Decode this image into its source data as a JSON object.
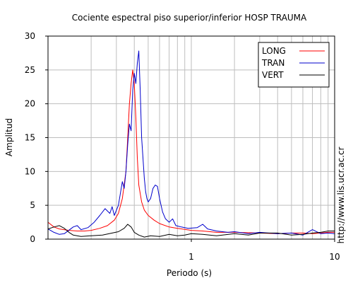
{
  "chart_data": {
    "type": "line",
    "title": "Cociente espectral piso superior/inferior  HOSP TRAUMA",
    "xlabel": "Periodo (s)",
    "ylabel": "Amplitud",
    "xscale": "log",
    "xlim": [
      0.1,
      10
    ],
    "ylim": [
      0,
      30
    ],
    "xticks": [
      {
        "value": 1,
        "label": "1"
      },
      {
        "value": 10,
        "label": "10"
      }
    ],
    "yticks": [
      0,
      5,
      10,
      15,
      20,
      25,
      30
    ],
    "grid": true,
    "legend_position": "top-right",
    "watermark": "http://www.lis.ucr.ac.cr",
    "series": [
      {
        "name": "LONG",
        "color": "#ff0000",
        "points": [
          [
            0.1,
            2.5
          ],
          [
            0.11,
            1.8
          ],
          [
            0.12,
            1.5
          ],
          [
            0.14,
            1.3
          ],
          [
            0.16,
            1.2
          ],
          [
            0.18,
            1.2
          ],
          [
            0.2,
            1.3
          ],
          [
            0.23,
            1.6
          ],
          [
            0.26,
            2.0
          ],
          [
            0.29,
            2.8
          ],
          [
            0.31,
            3.8
          ],
          [
            0.33,
            6.0
          ],
          [
            0.35,
            10.0
          ],
          [
            0.36,
            15.0
          ],
          [
            0.37,
            20.0
          ],
          [
            0.38,
            23.0
          ],
          [
            0.39,
            25.0
          ],
          [
            0.4,
            23.0
          ],
          [
            0.41,
            18.0
          ],
          [
            0.42,
            12.0
          ],
          [
            0.43,
            8.0
          ],
          [
            0.45,
            5.5
          ],
          [
            0.47,
            4.3
          ],
          [
            0.5,
            3.5
          ],
          [
            0.55,
            2.8
          ],
          [
            0.6,
            2.3
          ],
          [
            0.7,
            1.8
          ],
          [
            0.8,
            1.6
          ],
          [
            1.0,
            1.3
          ],
          [
            1.2,
            1.2
          ],
          [
            1.5,
            1.0
          ],
          [
            2.0,
            1.0
          ],
          [
            3.0,
            0.9
          ],
          [
            4.0,
            0.8
          ],
          [
            5.0,
            0.9
          ],
          [
            6.0,
            0.9
          ],
          [
            7.0,
            0.8
          ],
          [
            8.0,
            0.9
          ],
          [
            9.0,
            1.0
          ],
          [
            10.0,
            1.0
          ]
        ]
      },
      {
        "name": "TRAN",
        "color": "#0000cc",
        "points": [
          [
            0.1,
            1.5
          ],
          [
            0.11,
            1.0
          ],
          [
            0.12,
            0.7
          ],
          [
            0.13,
            0.8
          ],
          [
            0.15,
            1.8
          ],
          [
            0.16,
            2.0
          ],
          [
            0.17,
            1.4
          ],
          [
            0.19,
            1.7
          ],
          [
            0.21,
            2.5
          ],
          [
            0.23,
            3.5
          ],
          [
            0.25,
            4.5
          ],
          [
            0.27,
            3.8
          ],
          [
            0.28,
            4.8
          ],
          [
            0.29,
            3.5
          ],
          [
            0.31,
            5.0
          ],
          [
            0.33,
            8.5
          ],
          [
            0.34,
            7.5
          ],
          [
            0.35,
            10.0
          ],
          [
            0.36,
            14.0
          ],
          [
            0.37,
            17.0
          ],
          [
            0.38,
            16.0
          ],
          [
            0.39,
            22.0
          ],
          [
            0.4,
            24.5
          ],
          [
            0.41,
            23.0
          ],
          [
            0.42,
            26.0
          ],
          [
            0.43,
            27.8
          ],
          [
            0.44,
            22.0
          ],
          [
            0.45,
            15.0
          ],
          [
            0.46,
            12.0
          ],
          [
            0.47,
            9.0
          ],
          [
            0.48,
            7.0
          ],
          [
            0.49,
            6.0
          ],
          [
            0.5,
            5.5
          ],
          [
            0.52,
            6.0
          ],
          [
            0.54,
            7.5
          ],
          [
            0.56,
            8.0
          ],
          [
            0.58,
            7.8
          ],
          [
            0.6,
            6.0
          ],
          [
            0.63,
            4.0
          ],
          [
            0.66,
            3.0
          ],
          [
            0.7,
            2.5
          ],
          [
            0.74,
            3.0
          ],
          [
            0.78,
            2.0
          ],
          [
            0.85,
            1.8
          ],
          [
            0.95,
            1.6
          ],
          [
            1.1,
            1.7
          ],
          [
            1.2,
            2.2
          ],
          [
            1.3,
            1.5
          ],
          [
            1.5,
            1.2
          ],
          [
            1.8,
            1.0
          ],
          [
            2.0,
            1.1
          ],
          [
            2.5,
            0.8
          ],
          [
            3.0,
            1.0
          ],
          [
            4.0,
            0.8
          ],
          [
            5.0,
            0.9
          ],
          [
            6.0,
            0.6
          ],
          [
            7.0,
            1.4
          ],
          [
            8.0,
            0.8
          ],
          [
            9.0,
            0.9
          ],
          [
            10.0,
            0.8
          ]
        ]
      },
      {
        "name": "VERT",
        "color": "#000000",
        "points": [
          [
            0.1,
            1.5
          ],
          [
            0.11,
            1.8
          ],
          [
            0.12,
            2.0
          ],
          [
            0.13,
            1.6
          ],
          [
            0.14,
            1.0
          ],
          [
            0.15,
            0.6
          ],
          [
            0.17,
            0.4
          ],
          [
            0.2,
            0.5
          ],
          [
            0.24,
            0.6
          ],
          [
            0.28,
            0.9
          ],
          [
            0.31,
            1.1
          ],
          [
            0.34,
            1.6
          ],
          [
            0.36,
            2.2
          ],
          [
            0.38,
            1.8
          ],
          [
            0.4,
            1.0
          ],
          [
            0.43,
            0.6
          ],
          [
            0.47,
            0.3
          ],
          [
            0.52,
            0.5
          ],
          [
            0.6,
            0.4
          ],
          [
            0.7,
            0.7
          ],
          [
            0.8,
            0.5
          ],
          [
            0.9,
            0.6
          ],
          [
            1.0,
            0.8
          ],
          [
            1.2,
            0.7
          ],
          [
            1.5,
            0.5
          ],
          [
            2.0,
            0.8
          ],
          [
            2.5,
            0.6
          ],
          [
            3.0,
            0.9
          ],
          [
            4.0,
            0.9
          ],
          [
            5.0,
            0.6
          ],
          [
            6.0,
            0.7
          ],
          [
            7.0,
            0.9
          ],
          [
            8.0,
            1.0
          ],
          [
            9.0,
            1.2
          ],
          [
            10.0,
            1.2
          ]
        ]
      }
    ]
  }
}
